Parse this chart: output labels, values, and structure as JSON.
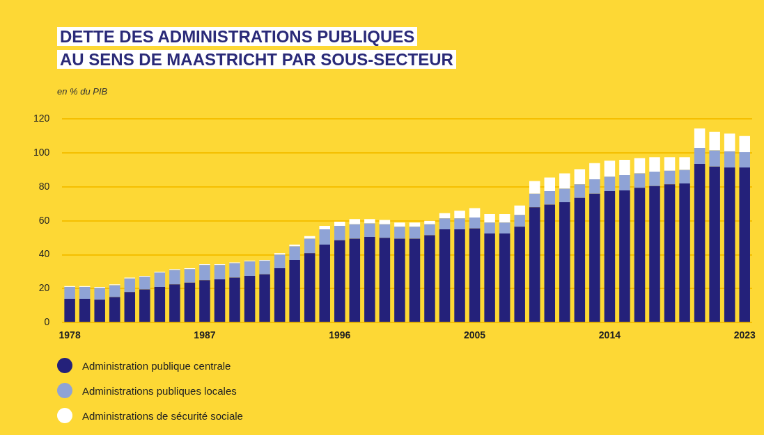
{
  "chart_data": {
    "type": "bar",
    "stacked": true,
    "title": "DETTE DES ADMINISTRATIONS PUBLIQUES\nAU SENS DE MAASTRICHT PAR SOUS-SECTEUR",
    "ylabel": "en % du PIB",
    "categories": [
      "1978",
      null,
      null,
      null,
      null,
      null,
      null,
      null,
      null,
      "1987",
      null,
      null,
      null,
      null,
      null,
      null,
      null,
      null,
      "1996",
      null,
      null,
      null,
      null,
      null,
      null,
      null,
      null,
      "2005",
      null,
      null,
      null,
      null,
      null,
      null,
      null,
      null,
      "2014",
      null,
      null,
      null,
      null,
      null,
      null,
      null,
      null,
      "2023"
    ],
    "series": [
      {
        "name": "Administration publique centrale",
        "color": "#24217a",
        "values": [
          14,
          14,
          13.5,
          15,
          18,
          19.5,
          21,
          22.5,
          23.5,
          25,
          25.5,
          26.5,
          27.5,
          28.5,
          32,
          37,
          41,
          46,
          48.5,
          49.5,
          50.5,
          50,
          49.5,
          49.5,
          51.5,
          55,
          55,
          55.5,
          52.5,
          52.5,
          56.5,
          68,
          69.5,
          71,
          73.5,
          76,
          77.5,
          78,
          79.5,
          80.5,
          81.5,
          82,
          93.5,
          92,
          91.5,
          91.5
        ]
      },
      {
        "name": "Administrations publiques locales",
        "color": "#8fa3d6",
        "values": [
          7,
          7,
          7,
          7,
          8,
          7.5,
          8.5,
          8.5,
          8,
          9,
          8.5,
          8.5,
          8.5,
          8,
          8,
          8,
          8.5,
          9,
          8.5,
          8.5,
          8,
          8,
          7,
          7,
          6.5,
          6.5,
          6.5,
          6.5,
          6.5,
          6.5,
          7,
          8,
          8,
          8,
          8,
          8.5,
          8.5,
          9,
          8.5,
          8.5,
          8,
          8,
          9.5,
          9.5,
          9.5,
          9
        ]
      },
      {
        "name": "Administrations de sécurité sociale",
        "color": "#ffffff",
        "values": [
          0.5,
          0.5,
          0.5,
          0.5,
          0.5,
          0.5,
          0.5,
          0.5,
          0.5,
          0.5,
          0.5,
          0.5,
          0.5,
          0.5,
          1,
          1,
          1.5,
          2,
          2.5,
          3,
          2.5,
          2.5,
          2.5,
          2.5,
          2,
          3,
          4.5,
          5.5,
          5,
          5,
          5.5,
          7.5,
          8,
          9,
          9,
          9.5,
          9.5,
          9,
          9,
          8.5,
          8,
          7.5,
          11.5,
          11,
          10.5,
          9.5
        ]
      }
    ],
    "ylim": [
      0,
      120
    ],
    "yticks": [
      0,
      20,
      40,
      60,
      80,
      100,
      120
    ],
    "grid": "y",
    "legend": "bottom"
  }
}
